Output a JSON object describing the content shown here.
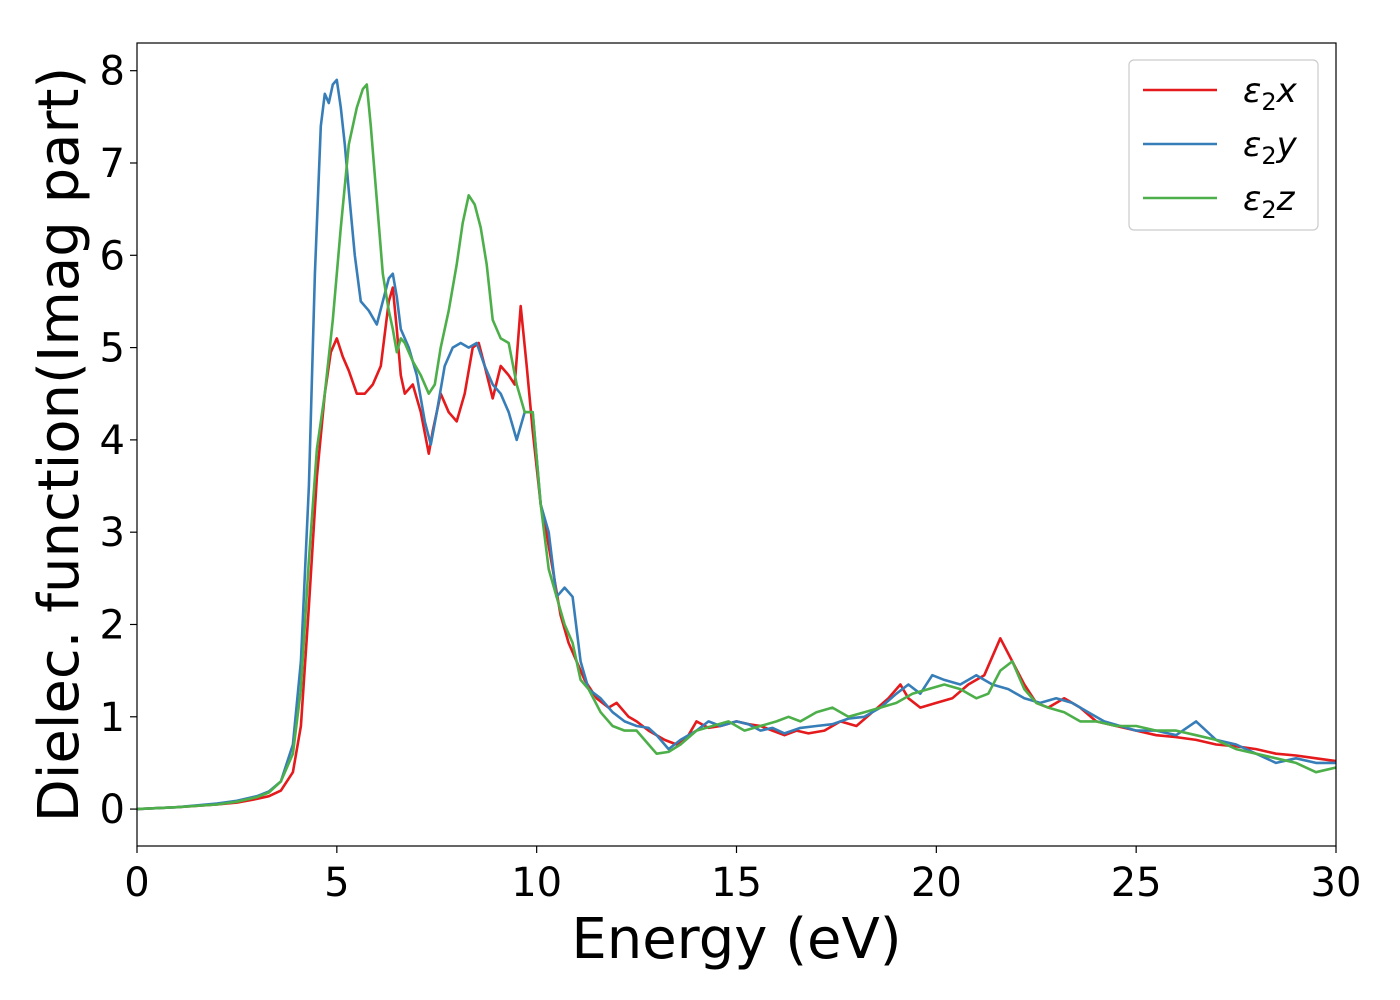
{
  "chart_data": {
    "type": "line",
    "title": "",
    "xlabel": "Energy (eV)",
    "ylabel": "Dielec. function(Imag part)",
    "xlim": [
      0,
      30
    ],
    "ylim": [
      -0.4,
      8.3
    ],
    "x_ticks": [
      0,
      5,
      10,
      15,
      20,
      25,
      30
    ],
    "y_ticks": [
      0,
      1,
      2,
      3,
      4,
      5,
      6,
      7,
      8
    ],
    "grid": false,
    "legend_position": "top-right",
    "series": [
      {
        "name": "ε2x",
        "legend_base": "ε",
        "legend_sub": "2",
        "legend_var": "x",
        "color": "#e41a1c",
        "x": [
          0,
          1,
          2,
          2.5,
          3,
          3.3,
          3.6,
          3.9,
          4.1,
          4.3,
          4.5,
          4.7,
          4.85,
          5.0,
          5.15,
          5.3,
          5.5,
          5.7,
          5.9,
          6.1,
          6.3,
          6.4,
          6.5,
          6.6,
          6.7,
          6.9,
          7.1,
          7.3,
          7.4,
          7.6,
          7.8,
          8.0,
          8.2,
          8.4,
          8.55,
          8.7,
          8.9,
          9.1,
          9.3,
          9.45,
          9.6,
          9.75,
          9.9,
          10.1,
          10.2,
          10.4,
          10.6,
          10.8,
          11.0,
          11.2,
          11.5,
          11.8,
          12.0,
          12.3,
          12.5,
          12.8,
          13.0,
          13.2,
          13.5,
          13.8,
          14.0,
          14.3,
          14.6,
          15.0,
          15.3,
          15.6,
          15.9,
          16.2,
          16.5,
          16.8,
          17.2,
          17.6,
          18.0,
          18.4,
          18.8,
          19.1,
          19.3,
          19.6,
          20.0,
          20.4,
          20.8,
          21.2,
          21.6,
          21.9,
          22.2,
          22.5,
          22.8,
          23.2,
          23.6,
          24.0,
          24.5,
          25.0,
          25.5,
          26.0,
          26.5,
          27.0,
          27.5,
          28.0,
          28.5,
          29.0,
          29.5,
          30.0
        ],
        "values": [
          0.0,
          0.02,
          0.05,
          0.07,
          0.11,
          0.14,
          0.2,
          0.4,
          0.9,
          2.2,
          3.6,
          4.5,
          4.95,
          5.1,
          4.9,
          4.75,
          4.5,
          4.5,
          4.6,
          4.8,
          5.5,
          5.65,
          5.2,
          4.7,
          4.5,
          4.6,
          4.3,
          3.85,
          4.1,
          4.5,
          4.3,
          4.2,
          4.5,
          5.0,
          5.05,
          4.8,
          4.45,
          4.8,
          4.7,
          4.6,
          5.45,
          4.8,
          4.1,
          3.3,
          3.1,
          2.6,
          2.1,
          1.8,
          1.6,
          1.4,
          1.2,
          1.1,
          1.15,
          1.0,
          0.95,
          0.85,
          0.8,
          0.75,
          0.7,
          0.8,
          0.95,
          0.88,
          0.9,
          0.95,
          0.92,
          0.9,
          0.85,
          0.8,
          0.85,
          0.82,
          0.85,
          0.95,
          0.9,
          1.05,
          1.2,
          1.35,
          1.2,
          1.1,
          1.15,
          1.2,
          1.35,
          1.45,
          1.85,
          1.6,
          1.35,
          1.15,
          1.1,
          1.2,
          1.1,
          0.95,
          0.9,
          0.85,
          0.8,
          0.78,
          0.75,
          0.7,
          0.68,
          0.65,
          0.6,
          0.58,
          0.55,
          0.52
        ]
      },
      {
        "name": "ε2y",
        "legend_base": "ε",
        "legend_sub": "2",
        "legend_var": "y",
        "color": "#377eb8",
        "x": [
          0,
          1,
          2,
          2.5,
          3,
          3.3,
          3.6,
          3.9,
          4.1,
          4.3,
          4.45,
          4.6,
          4.7,
          4.8,
          4.9,
          5.0,
          5.1,
          5.2,
          5.3,
          5.45,
          5.6,
          5.8,
          6.0,
          6.15,
          6.3,
          6.4,
          6.5,
          6.6,
          6.8,
          7.0,
          7.2,
          7.35,
          7.5,
          7.7,
          7.9,
          8.1,
          8.3,
          8.5,
          8.7,
          8.9,
          9.1,
          9.3,
          9.5,
          9.7,
          9.9,
          10.1,
          10.3,
          10.5,
          10.7,
          10.9,
          11.1,
          11.3,
          11.6,
          11.9,
          12.2,
          12.5,
          12.8,
          13.0,
          13.3,
          13.6,
          14.0,
          14.3,
          14.6,
          15.0,
          15.3,
          15.6,
          15.9,
          16.2,
          16.6,
          17.0,
          17.4,
          17.8,
          18.2,
          18.6,
          19.0,
          19.3,
          19.6,
          19.9,
          20.2,
          20.6,
          21.0,
          21.4,
          21.8,
          22.2,
          22.6,
          23.0,
          23.4,
          23.8,
          24.2,
          24.6,
          25.0,
          25.5,
          26.0,
          26.5,
          27.0,
          27.5,
          28.0,
          28.5,
          29.0,
          29.5,
          30.0
        ],
        "values": [
          0.0,
          0.02,
          0.06,
          0.09,
          0.14,
          0.19,
          0.3,
          0.7,
          1.6,
          3.5,
          5.8,
          7.4,
          7.75,
          7.65,
          7.85,
          7.9,
          7.6,
          7.2,
          6.7,
          6.0,
          5.5,
          5.4,
          5.25,
          5.5,
          5.75,
          5.8,
          5.55,
          5.2,
          5.0,
          4.7,
          4.2,
          3.95,
          4.3,
          4.8,
          5.0,
          5.05,
          5.0,
          5.05,
          4.8,
          4.6,
          4.5,
          4.3,
          4.0,
          4.3,
          4.3,
          3.3,
          3.0,
          2.3,
          2.4,
          2.3,
          1.6,
          1.3,
          1.2,
          1.05,
          0.95,
          0.9,
          0.88,
          0.8,
          0.65,
          0.75,
          0.85,
          0.95,
          0.9,
          0.95,
          0.92,
          0.85,
          0.88,
          0.82,
          0.88,
          0.9,
          0.92,
          0.98,
          1.0,
          1.1,
          1.25,
          1.35,
          1.25,
          1.45,
          1.4,
          1.35,
          1.45,
          1.35,
          1.3,
          1.2,
          1.15,
          1.2,
          1.15,
          1.05,
          0.95,
          0.9,
          0.85,
          0.85,
          0.8,
          0.95,
          0.75,
          0.7,
          0.6,
          0.5,
          0.55,
          0.5,
          0.5
        ]
      },
      {
        "name": "ε2z",
        "legend_base": "ε",
        "legend_sub": "2",
        "legend_var": "z",
        "color": "#4daf4a",
        "x": [
          0,
          1,
          2,
          2.5,
          3,
          3.3,
          3.6,
          3.9,
          4.1,
          4.3,
          4.5,
          4.7,
          4.9,
          5.1,
          5.3,
          5.5,
          5.65,
          5.75,
          5.85,
          6.0,
          6.15,
          6.3,
          6.4,
          6.5,
          6.6,
          6.7,
          6.9,
          7.1,
          7.3,
          7.45,
          7.6,
          7.8,
          8.0,
          8.15,
          8.3,
          8.45,
          8.6,
          8.75,
          8.9,
          9.1,
          9.3,
          9.5,
          9.7,
          9.9,
          10.1,
          10.3,
          10.5,
          10.7,
          10.9,
          11.1,
          11.3,
          11.6,
          11.9,
          12.2,
          12.5,
          12.8,
          13.0,
          13.3,
          13.6,
          14.0,
          14.4,
          14.8,
          15.2,
          15.6,
          16.0,
          16.3,
          16.6,
          17.0,
          17.4,
          17.8,
          18.2,
          18.6,
          19.0,
          19.4,
          19.8,
          20.2,
          20.6,
          21.0,
          21.3,
          21.6,
          21.9,
          22.2,
          22.5,
          22.8,
          23.2,
          23.6,
          24.0,
          24.5,
          25.0,
          25.5,
          26.0,
          26.5,
          27.0,
          27.5,
          28.0,
          28.5,
          29.0,
          29.5,
          30.0
        ],
        "values": [
          0.0,
          0.02,
          0.05,
          0.08,
          0.13,
          0.18,
          0.3,
          0.6,
          1.3,
          2.7,
          3.9,
          4.5,
          5.3,
          6.3,
          7.2,
          7.6,
          7.8,
          7.85,
          7.4,
          6.6,
          5.8,
          5.4,
          5.2,
          4.95,
          5.1,
          5.05,
          4.85,
          4.7,
          4.5,
          4.6,
          5.0,
          5.4,
          5.9,
          6.35,
          6.65,
          6.55,
          6.3,
          5.9,
          5.3,
          5.1,
          5.05,
          4.6,
          4.3,
          4.3,
          3.3,
          2.6,
          2.3,
          2.0,
          1.8,
          1.4,
          1.3,
          1.05,
          0.9,
          0.85,
          0.85,
          0.7,
          0.6,
          0.62,
          0.7,
          0.85,
          0.9,
          0.95,
          0.85,
          0.9,
          0.95,
          1.0,
          0.95,
          1.05,
          1.1,
          1.0,
          1.05,
          1.1,
          1.15,
          1.25,
          1.3,
          1.35,
          1.3,
          1.2,
          1.25,
          1.5,
          1.6,
          1.3,
          1.15,
          1.1,
          1.05,
          0.95,
          0.95,
          0.9,
          0.9,
          0.85,
          0.85,
          0.8,
          0.75,
          0.65,
          0.6,
          0.55,
          0.5,
          0.4,
          0.45
        ]
      }
    ]
  }
}
